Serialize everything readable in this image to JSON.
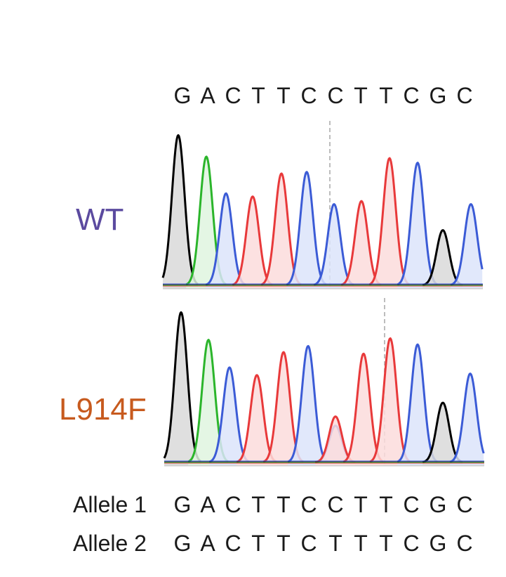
{
  "reference_sequence": [
    "G",
    "A",
    "C",
    "T",
    "T",
    "C",
    "C",
    "T",
    "T",
    "C",
    "G",
    "C"
  ],
  "traces": [
    {
      "label": "WT",
      "label_color": "#5b4a9f",
      "peaks": [
        {
          "base": "G",
          "height": 0.98
        },
        {
          "base": "A",
          "height": 0.84
        },
        {
          "base": "C",
          "height": 0.6
        },
        {
          "base": "T",
          "height": 0.58
        },
        {
          "base": "T",
          "height": 0.73
        },
        {
          "base": "C",
          "height": 0.74
        },
        {
          "base": "C",
          "height": 0.53
        },
        {
          "base": "T",
          "height": 0.55
        },
        {
          "base": "T",
          "height": 0.83
        },
        {
          "base": "C",
          "height": 0.8
        },
        {
          "base": "G",
          "height": 0.36
        },
        {
          "base": "C",
          "height": 0.53
        }
      ]
    },
    {
      "label": "L914F",
      "label_color": "#c75a1e",
      "peaks": [
        {
          "base": "G",
          "height": 0.98
        },
        {
          "base": "A",
          "height": 0.8
        },
        {
          "base": "C",
          "height": 0.62
        },
        {
          "base": "T",
          "height": 0.57
        },
        {
          "base": "T",
          "height": 0.72
        },
        {
          "base": "C",
          "height": 0.76
        },
        {
          "base": "T",
          "height": 0.3,
          "second": {
            "base": "C",
            "height": 0.24
          }
        },
        {
          "base": "T",
          "height": 0.71
        },
        {
          "base": "T",
          "height": 0.81
        },
        {
          "base": "C",
          "height": 0.77
        },
        {
          "base": "G",
          "height": 0.39
        },
        {
          "base": "C",
          "height": 0.58
        }
      ]
    }
  ],
  "alleles": [
    {
      "name": "Allele 1",
      "sequence": [
        "G",
        "A",
        "C",
        "T",
        "T",
        "C",
        "C",
        "T",
        "T",
        "C",
        "G",
        "C"
      ]
    },
    {
      "name": "Allele 2",
      "sequence": [
        "G",
        "A",
        "C",
        "T",
        "T",
        "C",
        "T",
        "T",
        "T",
        "C",
        "G",
        "C"
      ]
    }
  ],
  "base_colors": {
    "G": "#000000",
    "A": "#2bb52b",
    "C": "#3b5bd6",
    "T": "#e8393a"
  },
  "base_fill_colors": {
    "G": "#d9d9d9",
    "A": "#dff5df",
    "C": "#dce4fa",
    "T": "#fbdcdc"
  }
}
